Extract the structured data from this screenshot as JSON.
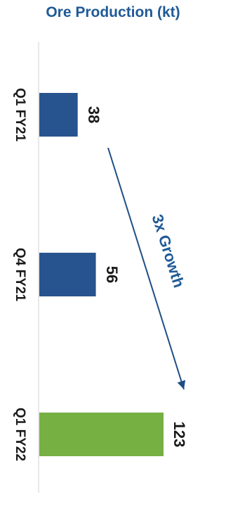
{
  "chart_data": {
    "type": "bar",
    "title": "Ore Production (kt)",
    "categories": [
      "Q1 FY21",
      "Q4 FY21",
      "Q1 FY22"
    ],
    "values": [
      38,
      56,
      123
    ],
    "value_labels": [
      "38",
      "56",
      "123"
    ],
    "bar_colors": [
      "#27548f",
      "#27548f",
      "#76b043"
    ],
    "annotation": "3x Growth",
    "annotation_color": "#1f5a96",
    "orientation": "horizontal-bars, labels rotated 90°",
    "grid": false
  }
}
